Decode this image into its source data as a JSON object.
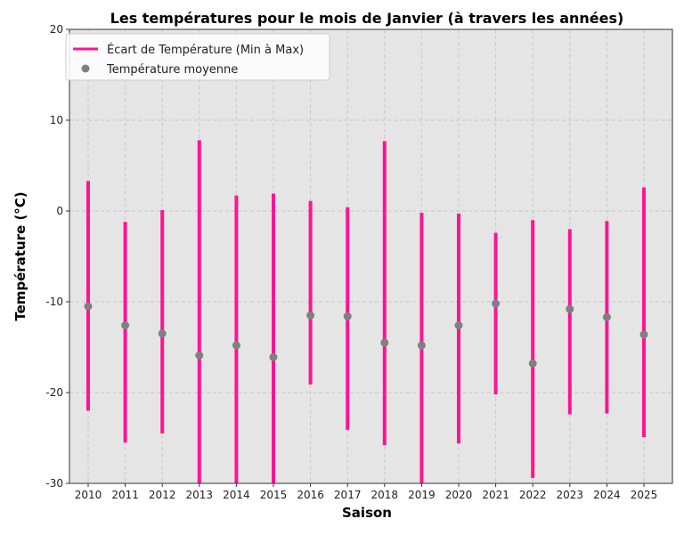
{
  "chart_data": {
    "type": "errorbar",
    "title": "Les températures pour le mois de Janvier (à travers les années)",
    "xlabel": "Saison",
    "ylabel": "Température (°C)",
    "ylim": [
      -30,
      20
    ],
    "yticks": [
      -30,
      -20,
      -10,
      0,
      10,
      20
    ],
    "grid": true,
    "legend_position": "top-left",
    "categories": [
      "2010",
      "2011",
      "2012",
      "2013",
      "2014",
      "2015",
      "2016",
      "2017",
      "2018",
      "2019",
      "2020",
      "2021",
      "2022",
      "2023",
      "2024",
      "2025"
    ],
    "series": [
      {
        "name": "Écart de Température (Min à Max)",
        "color": "#ff1493",
        "min": [
          -22,
          -25.5,
          -24.5,
          -31,
          -31,
          -31,
          -19.1,
          -24.1,
          -25.8,
          -31,
          -25.6,
          -20.2,
          -29.4,
          -22.4,
          -22.3,
          -24.9
        ],
        "max": [
          3.3,
          -1.2,
          0.1,
          7.8,
          1.7,
          1.9,
          1.1,
          0.4,
          7.7,
          -0.2,
          -0.3,
          -2.4,
          -1.0,
          -2.0,
          -1.1,
          2.6
        ]
      },
      {
        "name": "Température moyenne",
        "color": "#808080",
        "values": [
          -10.5,
          -12.6,
          -13.5,
          -15.9,
          -14.8,
          -16.1,
          -11.5,
          -11.6,
          -14.5,
          -14.8,
          -12.6,
          -10.2,
          -16.8,
          -10.8,
          -11.7,
          -13.6
        ]
      }
    ]
  }
}
